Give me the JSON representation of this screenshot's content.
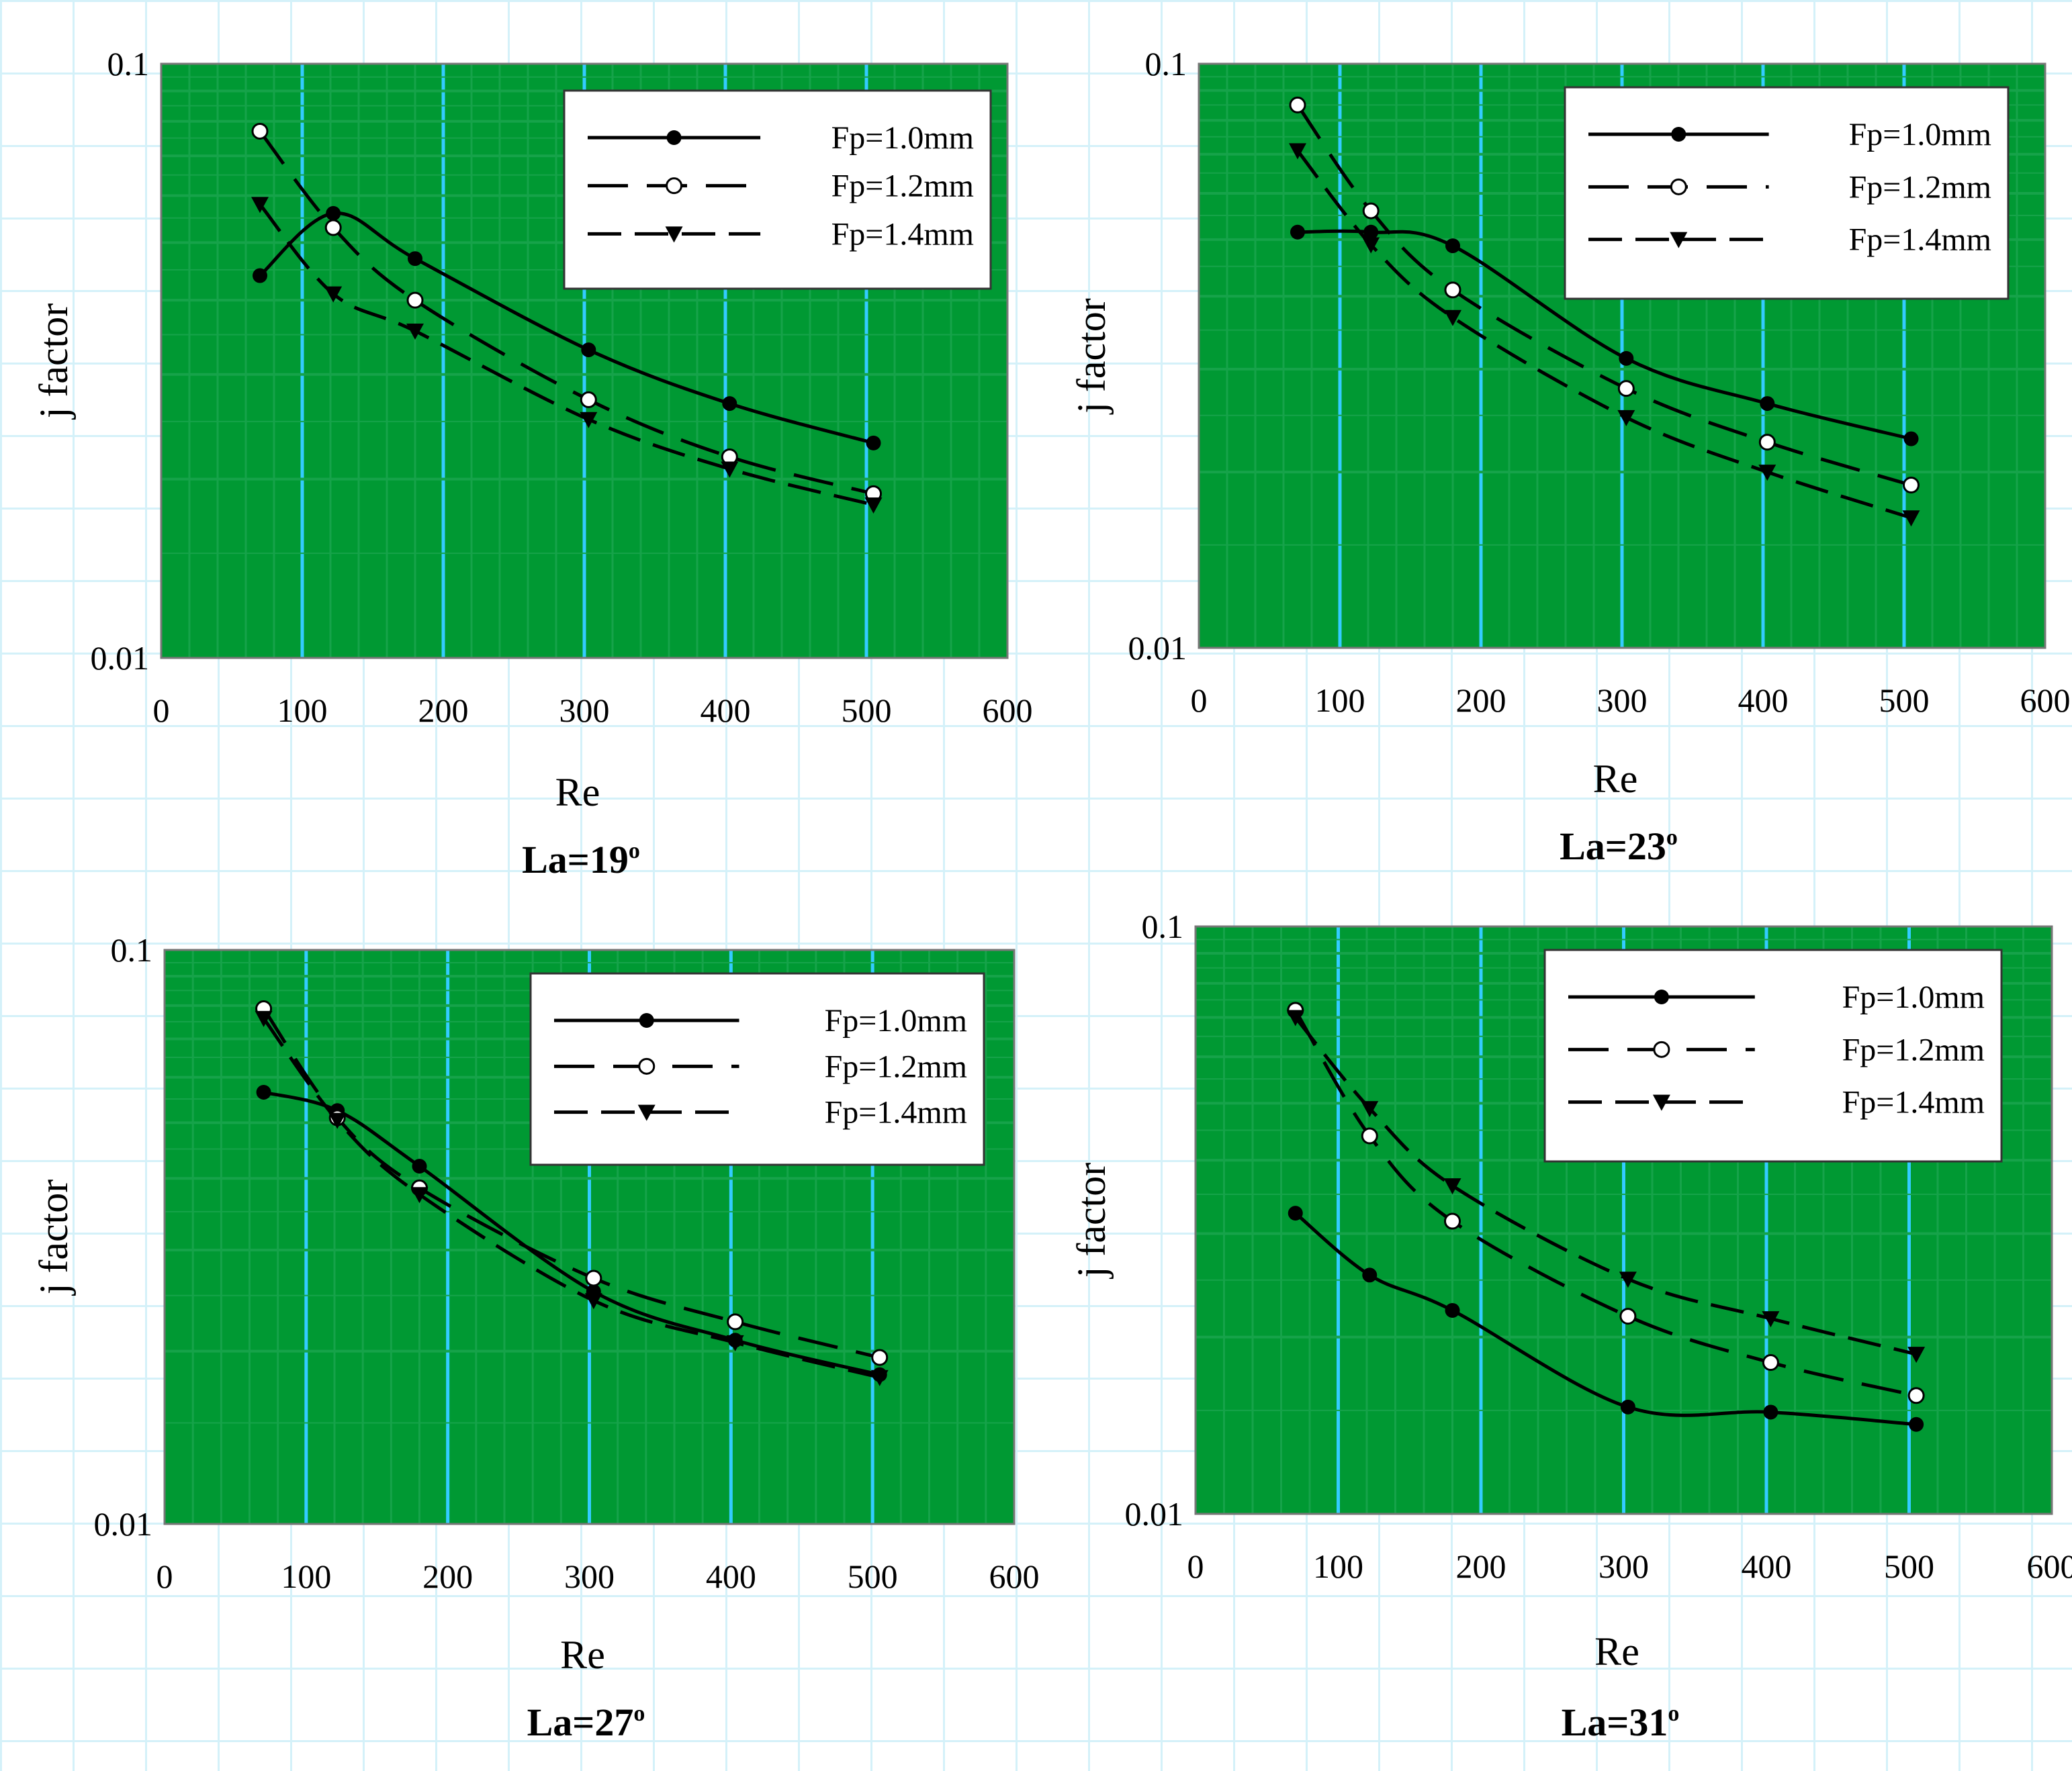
{
  "colors": {
    "plot_bg": "#009933",
    "grid_minor": "#16a34a",
    "grid_major": "#33ccff",
    "series_line": "#000000"
  },
  "chart_data": [
    {
      "type": "line",
      "title": "La=19",
      "title_sup": "o",
      "xlabel": "Re",
      "ylabel": "j factor",
      "xlim": [
        0,
        600
      ],
      "ylim": [
        0.01,
        0.1
      ],
      "y_scale": "log",
      "x_ticks": [
        "0",
        "100",
        "200",
        "300",
        "400",
        "500",
        "600"
      ],
      "y_ticks": [
        "0.01",
        "0.1"
      ],
      "legend_position": "top-right",
      "series": [
        {
          "name": "Fp=1.0mm",
          "marker": "dot",
          "dash": "solid",
          "x": [
            70,
            122,
            180,
            303,
            403,
            505
          ],
          "y": [
            0.044,
            0.056,
            0.047,
            0.033,
            0.0268,
            0.023
          ]
        },
        {
          "name": "Fp=1.2mm",
          "marker": "circle",
          "dash": "dash",
          "x": [
            70,
            122,
            180,
            303,
            403,
            505
          ],
          "y": [
            0.077,
            0.053,
            0.04,
            0.0272,
            0.0218,
            0.0189
          ]
        },
        {
          "name": "Fp=1.4mm",
          "marker": "triangle",
          "dash": "dash",
          "x": [
            70,
            122,
            180,
            303,
            403,
            505
          ],
          "y": [
            0.058,
            0.041,
            0.0355,
            0.0252,
            0.0208,
            0.0181
          ]
        }
      ]
    },
    {
      "type": "line",
      "title": "La=23",
      "title_sup": "o",
      "xlabel": "Re",
      "ylabel": "j factor",
      "xlim": [
        0,
        600
      ],
      "ylim": [
        0.01,
        0.1
      ],
      "y_scale": "log",
      "x_ticks": [
        "0",
        "100",
        "200",
        "300",
        "400",
        "500",
        "600"
      ],
      "y_ticks": [
        "0.01",
        "0.1"
      ],
      "legend_position": "top-right",
      "series": [
        {
          "name": "Fp=1.0mm",
          "marker": "dot",
          "dash": "solid",
          "x": [
            70,
            122,
            180,
            303,
            403,
            505
          ],
          "y": [
            0.0515,
            0.0515,
            0.0488,
            0.0313,
            0.0262,
            0.0228
          ]
        },
        {
          "name": "Fp=1.2mm",
          "marker": "circle",
          "dash": "dash",
          "x": [
            70,
            122,
            180,
            303,
            403,
            505
          ],
          "y": [
            0.085,
            0.056,
            0.041,
            0.0278,
            0.0225,
            0.019
          ]
        },
        {
          "name": "Fp=1.4mm",
          "marker": "triangle",
          "dash": "dash",
          "x": [
            70,
            122,
            180,
            303,
            403,
            505
          ],
          "y": [
            0.071,
            0.049,
            0.0368,
            0.0248,
            0.02,
            0.0167
          ]
        }
      ]
    },
    {
      "type": "line",
      "title": "La=27",
      "title_sup": "o",
      "xlabel": "Re",
      "ylabel": "j factor",
      "xlim": [
        0,
        600
      ],
      "ylim": [
        0.01,
        0.1
      ],
      "y_scale": "log",
      "x_ticks": [
        "0",
        "100",
        "200",
        "300",
        "400",
        "500",
        "600"
      ],
      "y_ticks": [
        "0.01",
        "0.1"
      ],
      "legend_position": "top-right",
      "series": [
        {
          "name": "Fp=1.0mm",
          "marker": "dot",
          "dash": "solid",
          "x": [
            70,
            122,
            180,
            303,
            403,
            505
          ],
          "y": [
            0.0565,
            0.0525,
            0.042,
            0.0254,
            0.0209,
            0.0182
          ]
        },
        {
          "name": "Fp=1.2mm",
          "marker": "circle",
          "dash": "dash",
          "x": [
            70,
            122,
            180,
            303,
            403,
            505
          ],
          "y": [
            0.079,
            0.051,
            0.0385,
            0.0268,
            0.0225,
            0.0195
          ]
        },
        {
          "name": "Fp=1.4mm",
          "marker": "triangle",
          "dash": "dash",
          "x": [
            70,
            122,
            180,
            303,
            403,
            505
          ],
          "y": [
            0.076,
            0.0505,
            0.0375,
            0.0245,
            0.0207,
            0.018
          ]
        }
      ]
    },
    {
      "type": "line",
      "title": "La=31",
      "title_sup": "o",
      "xlabel": "Re",
      "ylabel": "j factor",
      "xlim": [
        0,
        600
      ],
      "ylim": [
        0.01,
        0.1
      ],
      "y_scale": "log",
      "x_ticks": [
        "0",
        "100",
        "200",
        "300",
        "400",
        "500",
        "600"
      ],
      "y_ticks": [
        "0.01",
        "0.1"
      ],
      "legend_position": "top-right",
      "series": [
        {
          "name": "Fp=1.0mm",
          "marker": "dot",
          "dash": "solid",
          "x": [
            70,
            122,
            180,
            303,
            403,
            505
          ],
          "y": [
            0.0325,
            0.0255,
            0.0222,
            0.0152,
            0.0149,
            0.0142
          ]
        },
        {
          "name": "Fp=1.2mm",
          "marker": "circle",
          "dash": "dash",
          "x": [
            70,
            122,
            180,
            303,
            403,
            505
          ],
          "y": [
            0.072,
            0.044,
            0.0315,
            0.0217,
            0.0181,
            0.0159
          ]
        },
        {
          "name": "Fp=1.4mm",
          "marker": "triangle",
          "dash": "dash",
          "x": [
            70,
            122,
            180,
            303,
            403,
            505
          ],
          "y": [
            0.07,
            0.049,
            0.0362,
            0.0251,
            0.0215,
            0.0187
          ]
        }
      ]
    }
  ]
}
